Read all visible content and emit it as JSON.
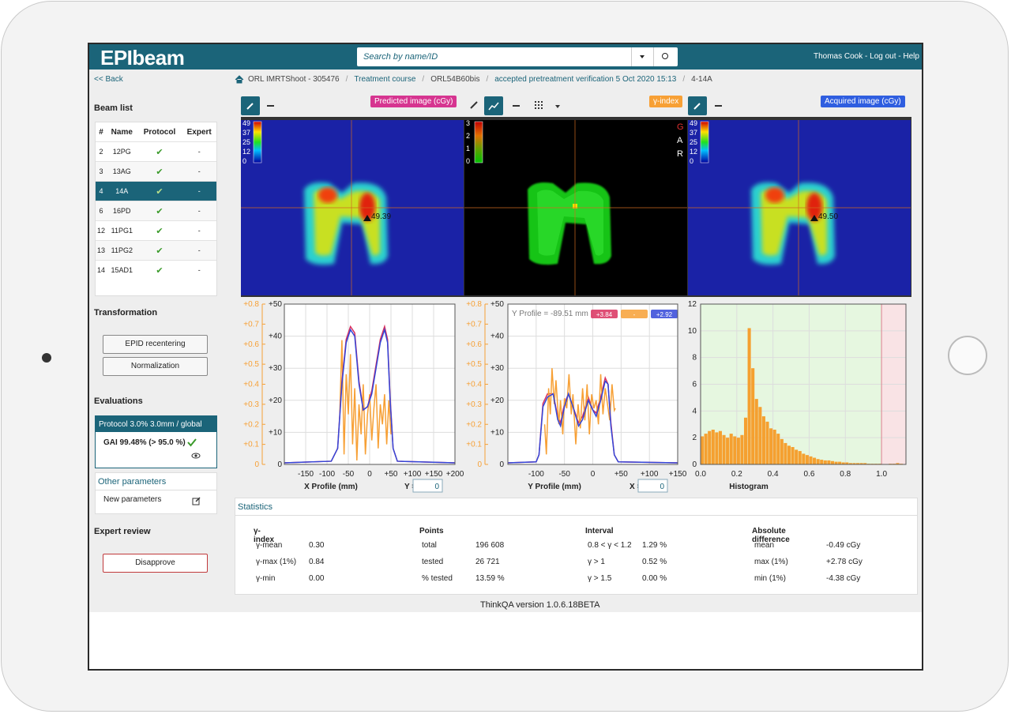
{
  "header": {
    "app_name": "EPIbeam",
    "search_placeholder": "Search by name/ID",
    "user_menu": "Thomas Cook - Log out - Help"
  },
  "breadcrumb": [
    "ORL IMRTShoot - 305476",
    "Treatment course",
    "ORL54B60bis",
    "accepted pretreatment verification 5 Oct 2020 15:13",
    "4-14A"
  ],
  "sidebar": {
    "back": "<< Back",
    "beam_list": {
      "title": "Beam list",
      "columns": [
        "#",
        "Name",
        "Protocol",
        "Expert"
      ],
      "rows": [
        [
          "2",
          "12PG",
          "✔",
          "-"
        ],
        [
          "3",
          "13AG",
          "✔",
          "-"
        ],
        [
          "4",
          "14A",
          "✔",
          "-"
        ],
        [
          "6",
          "16PD",
          "✔",
          "-"
        ],
        [
          "12",
          "11PG1",
          "✔",
          "-"
        ],
        [
          "13",
          "11PG2",
          "✔",
          "-"
        ],
        [
          "14",
          "15AD1",
          "✔",
          "-"
        ]
      ],
      "selected_row": 2
    },
    "transformation": {
      "title": "Transformation",
      "buttons": [
        "EPID recentering",
        "Normalization"
      ]
    },
    "evaluations": {
      "title": "Evaluations",
      "protocol": "Protocol 3.0% 3.0mm / global",
      "result": "GAI 99.48% (> 95.0 %)",
      "other_parameters": "Other parameters",
      "new_parameters": "New parameters"
    },
    "expert_review": {
      "title": "Expert review",
      "button": "Disapprove"
    }
  },
  "toolbar": {
    "predicted": "Predicted image (cGy)",
    "gamma": "γ-index",
    "acquired": "Acquired image (cGy)"
  },
  "images": {
    "dose_colorbar": [
      "49",
      "37",
      "25",
      "12",
      "0"
    ],
    "gamma_colorbar": [
      "3",
      "2",
      "1",
      "0"
    ],
    "gamma_letters": [
      "G",
      "A",
      "R"
    ],
    "predicted_point": "49.39",
    "acquired_point": "49.50"
  },
  "charts": [
    {
      "type": "line",
      "xlabel": "X Profile (mm)",
      "cursor_label": "Y =",
      "cursor_value": "0",
      "xlim": [
        -200,
        200
      ],
      "xticks": [
        -150,
        -100,
        -50,
        0,
        {
          "value": 50,
          "label": "+50"
        },
        {
          "value": 100,
          "label": "+100"
        },
        {
          "value": 150,
          "label": "+150"
        },
        {
          "value": 200,
          "label": "+200"
        }
      ],
      "ylim": [
        0,
        50
      ],
      "yticks": [
        0,
        {
          "value": 10,
          "label": "+10"
        },
        {
          "value": 20,
          "label": "+20"
        },
        {
          "value": 30,
          "label": "+30"
        },
        {
          "value": 40,
          "label": "+40"
        },
        {
          "value": 50,
          "label": "+50"
        }
      ],
      "y2lim": [
        0,
        0.8
      ],
      "y2ticks": [
        0,
        {
          "value": 0.1,
          "label": "+0.1"
        },
        {
          "value": 0.2,
          "label": "+0.2"
        },
        {
          "value": 0.3,
          "label": "+0.3"
        },
        {
          "value": 0.4,
          "label": "+0.4"
        },
        {
          "value": 0.5,
          "label": "+0.5"
        },
        {
          "value": 0.6,
          "label": "+0.6"
        },
        {
          "value": 0.7,
          "label": "+0.7"
        },
        {
          "value": 0.8,
          "label": "+0.8"
        }
      ],
      "series": [
        {
          "color": "#f7a035",
          "axis": "y2",
          "x": [
            -70,
            -65,
            -60,
            -55,
            -50,
            -45,
            -40,
            -35,
            -30,
            -25,
            -20,
            -15,
            -10,
            -5,
            0,
            5,
            10,
            15,
            20,
            25,
            30,
            35,
            40,
            45,
            50
          ],
          "values": [
            0.25,
            0.62,
            0.05,
            0.45,
            0.25,
            0.55,
            0.1,
            0.38,
            0.02,
            0.3,
            0.15,
            0.4,
            0.05,
            0.25,
            0.35,
            0.12,
            0.28,
            0.4,
            0.08,
            0.3,
            0.2,
            0.35,
            0.1,
            0.32,
            0.15
          ]
        },
        {
          "color": "#d9305e",
          "x": [
            -200,
            -90,
            -75,
            -65,
            -55,
            -45,
            -35,
            -25,
            -15,
            -5,
            5,
            15,
            25,
            35,
            42,
            48,
            55,
            65,
            200
          ],
          "values": [
            0.5,
            1,
            5,
            26,
            39,
            43,
            41,
            26,
            17,
            18,
            23,
            31,
            39,
            43,
            39,
            21,
            5,
            1,
            0.5
          ]
        },
        {
          "color": "#3346d8",
          "x": [
            -200,
            -90,
            -75,
            -65,
            -55,
            -45,
            -35,
            -25,
            -15,
            -5,
            5,
            15,
            25,
            35,
            42,
            48,
            55,
            65,
            200
          ],
          "values": [
            0.5,
            1,
            5,
            25,
            38,
            42,
            40,
            25,
            17,
            18,
            22,
            30,
            38,
            42,
            38,
            20,
            5,
            1,
            0.5
          ]
        }
      ]
    },
    {
      "type": "line",
      "xlabel": "Y Profile (mm)",
      "cursor_label": "X =",
      "cursor_value": "0",
      "legend_title": "Y Profile = -89.51 mm",
      "xlim": [
        -150,
        150
      ],
      "xticks": [
        -100,
        -50,
        0,
        {
          "value": 50,
          "label": "+50"
        },
        {
          "value": 100,
          "label": "+100"
        },
        {
          "value": 150,
          "label": "+150"
        }
      ],
      "ylim": [
        0,
        50
      ],
      "yticks": [
        0,
        {
          "value": 10,
          "label": "+10"
        },
        {
          "value": 20,
          "label": "+20"
        },
        {
          "value": 30,
          "label": "+30"
        },
        {
          "value": 40,
          "label": "+40"
        },
        {
          "value": 50,
          "label": "+50"
        }
      ],
      "y2lim": [
        0,
        0.8
      ],
      "y2ticks": [
        0,
        {
          "value": 0.1,
          "label": "+0.1"
        },
        {
          "value": 0.2,
          "label": "+0.2"
        },
        {
          "value": 0.3,
          "label": "+0.3"
        },
        {
          "value": 0.4,
          "label": "+0.4"
        },
        {
          "value": 0.5,
          "label": "+0.5"
        },
        {
          "value": 0.6,
          "label": "+0.6"
        },
        {
          "value": 0.7,
          "label": "+0.7"
        },
        {
          "value": 0.8,
          "label": "+0.8"
        }
      ],
      "series": [
        {
          "name": "+3.84",
          "color": "#d9305e",
          "x": [
            -150,
            -100,
            -95,
            -88,
            -80,
            -70,
            -62,
            -57,
            -50,
            -43,
            -35,
            -25,
            -18,
            -8,
            0,
            6,
            14,
            22,
            27,
            32,
            38,
            45,
            150
          ],
          "values": [
            0.5,
            0.8,
            3,
            19,
            22,
            22,
            15,
            13,
            19,
            22,
            18,
            13,
            15,
            21,
            17,
            16,
            21,
            27,
            25,
            13,
            3,
            0.8,
            0.5
          ]
        },
        {
          "name": "-",
          "color": "#f7a035",
          "axis": "y2",
          "x": [
            -85,
            -82,
            -78,
            -75,
            -72,
            -68,
            -65,
            -60,
            -57,
            -53,
            -50,
            -46,
            -42,
            -38,
            -35,
            -30,
            -26,
            -22,
            -18,
            -14,
            -10,
            -6,
            -2,
            2,
            6,
            10,
            14,
            18,
            22,
            26,
            30,
            34,
            38,
            40
          ],
          "values": [
            0.2,
            0.05,
            0.38,
            0.25,
            0.48,
            0.3,
            0.42,
            0.2,
            0.32,
            0.15,
            0.33,
            0.28,
            0.45,
            0.25,
            0.35,
            0.1,
            0.3,
            0.18,
            0.38,
            0.22,
            0.4,
            0.15,
            0.35,
            0.28,
            0.32,
            0.2,
            0.45,
            0.25,
            0.38,
            0.3,
            0.22,
            0.4,
            0.27,
            0.28
          ]
        },
        {
          "name": "+2.92",
          "color": "#3346d8",
          "x": [
            -150,
            -100,
            -95,
            -88,
            -80,
            -70,
            -62,
            -57,
            -50,
            -43,
            -35,
            -25,
            -18,
            -8,
            0,
            6,
            14,
            22,
            27,
            32,
            38,
            45,
            150
          ],
          "values": [
            0.5,
            0.8,
            3,
            18,
            21,
            22,
            14,
            12,
            18,
            22,
            18,
            12,
            14,
            20,
            17,
            15,
            20,
            26,
            25,
            12,
            3,
            0.8,
            0.5
          ]
        }
      ]
    },
    {
      "type": "histogram",
      "xlabel": "Histogram",
      "color": "#f5a030",
      "pass_limit": 1,
      "xlim": [
        0,
        1.135
      ],
      "xticks": [
        {
          "value": 0,
          "label": "0.0"
        },
        {
          "value": 0.2,
          "label": "0.2"
        },
        {
          "value": 0.4,
          "label": "0.4"
        },
        {
          "value": 0.6,
          "label": "0.6"
        },
        {
          "value": 0.8,
          "label": "0.8"
        },
        {
          "value": 1,
          "label": "1.0"
        }
      ],
      "ylim": [
        0,
        12
      ],
      "yticks": [
        0,
        2,
        4,
        6,
        8,
        10,
        12
      ],
      "bins": [
        0,
        0.02,
        0.04,
        0.06,
        0.08,
        0.1,
        0.12,
        0.14,
        0.16,
        0.18,
        0.2,
        0.22,
        0.24,
        0.26,
        0.28,
        0.3,
        0.32,
        0.34,
        0.36,
        0.38,
        0.4,
        0.42,
        0.44,
        0.46,
        0.48,
        0.5,
        0.52,
        0.54,
        0.56,
        0.58,
        0.6,
        0.62,
        0.64,
        0.66,
        0.68,
        0.7,
        0.72,
        0.74,
        0.76,
        0.78,
        0.8,
        0.82,
        0.84,
        0.86,
        0.88,
        0.9,
        0.92,
        0.94,
        0.96,
        0.98,
        1,
        1.02,
        1.04,
        1.06,
        1.08,
        1.1,
        1.12,
        1.14
      ],
      "counts": [
        2.1,
        2.3,
        2.5,
        2.6,
        2.4,
        2.5,
        2.2,
        2.0,
        2.3,
        2.1,
        2.0,
        2.2,
        3.5,
        10.2,
        7.2,
        4.9,
        4.3,
        3.6,
        3.2,
        2.7,
        2.6,
        2.3,
        1.9,
        1.6,
        1.4,
        1.3,
        1.1,
        1.0,
        0.8,
        0.7,
        0.6,
        0.5,
        0.4,
        0.35,
        0.3,
        0.3,
        0.25,
        0.2,
        0.2,
        0.15,
        0.15,
        0.1,
        0.1,
        0.1,
        0.1,
        0.1,
        0.05,
        0.05,
        0.05,
        0.05,
        0.02,
        0.02,
        0.05,
        0.05,
        0.1,
        0.05,
        0.02
      ]
    }
  ],
  "statistics": {
    "title": "Statistics",
    "sections": [
      {
        "title": "γ-index",
        "rows": [
          [
            "γ-mean",
            "0.30"
          ],
          [
            "γ-max (1%)",
            "0.84"
          ],
          [
            "γ-min",
            "0.00"
          ]
        ]
      },
      {
        "title": "Points",
        "rows": [
          [
            "total",
            "196 608"
          ],
          [
            "tested",
            "26 721"
          ],
          [
            "% tested",
            "13.59 %"
          ]
        ]
      },
      {
        "title": "Interval",
        "rows": [
          [
            "0.8 < γ < 1.2",
            "1.29 %"
          ],
          [
            "γ > 1",
            "0.52 %"
          ],
          [
            "γ > 1.5",
            "0.00 %"
          ]
        ]
      },
      {
        "title": "Absolute difference",
        "rows": [
          [
            "mean",
            "-0.49 cGy"
          ],
          [
            "max (1%)",
            "+2.78 cGy"
          ],
          [
            "min (1%)",
            "-4.38 cGy"
          ]
        ]
      }
    ]
  },
  "footer": "ThinkQA version 1.0.6.18BETA"
}
